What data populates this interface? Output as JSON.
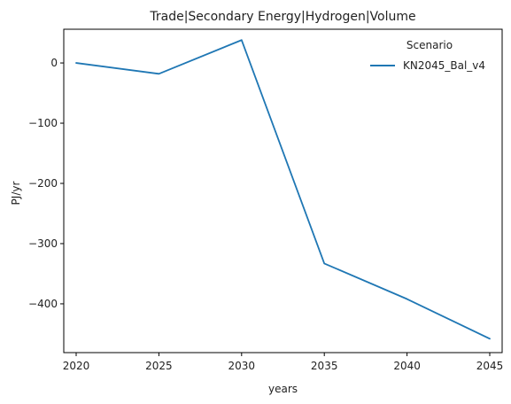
{
  "chart_data": {
    "type": "line",
    "title": "Trade|Secondary Energy|Hydrogen|Volume",
    "xlabel": "years",
    "ylabel": "PJ/yr",
    "x": [
      2020,
      2025,
      2030,
      2035,
      2040,
      2045
    ],
    "xticks": [
      2020,
      2025,
      2030,
      2035,
      2040,
      2045
    ],
    "yticks": [
      0,
      -100,
      -200,
      -300,
      -400
    ],
    "ytick_labels": [
      "0",
      "−100",
      "−200",
      "−300",
      "−400"
    ],
    "xlim": [
      2019.25,
      2045.75
    ],
    "ylim": [
      -481,
      56
    ],
    "grid": false,
    "legend": {
      "title": "Scenario",
      "placement": "top-right"
    },
    "series": [
      {
        "name": "KN2045_Bal_v4",
        "color": "#1f77b4",
        "values": [
          0,
          -18,
          38,
          -333,
          -392,
          -458
        ]
      }
    ]
  }
}
